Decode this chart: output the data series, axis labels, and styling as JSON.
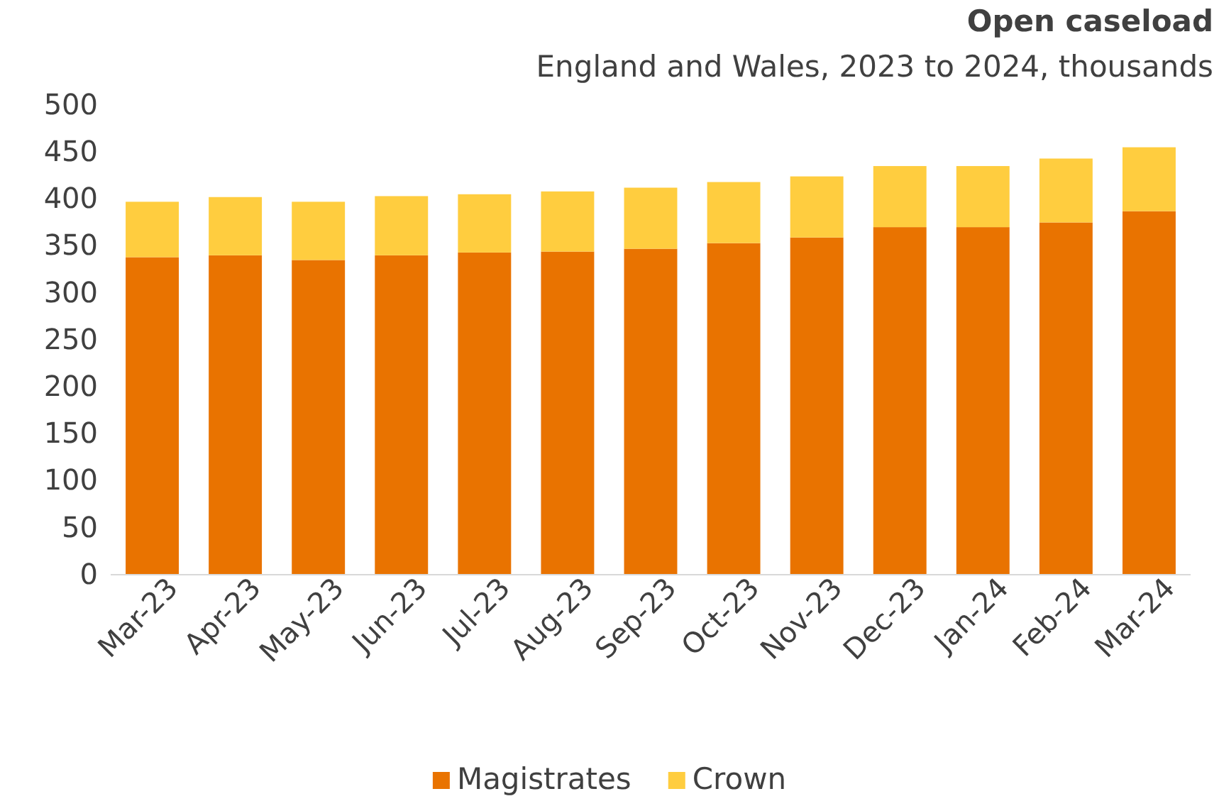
{
  "chart_data": {
    "type": "bar",
    "title": "Open caseload",
    "subtitle": "England and Wales, 2023 to 2024, thousands",
    "categories": [
      "Mar-23",
      "Apr-23",
      "May-23",
      "Jun-23",
      "Jul-23",
      "Aug-23",
      "Sep-23",
      "Oct-23",
      "Nov-23",
      "Dec-23",
      "Jan-24",
      "Feb-24",
      "Mar-24"
    ],
    "stacked": true,
    "series": [
      {
        "name": "Magistrates",
        "color": "#e97300",
        "values": [
          338,
          340,
          335,
          340,
          343,
          344,
          347,
          353,
          359,
          370,
          370,
          375,
          387
        ]
      },
      {
        "name": "Crown",
        "color": "#ffcd3f",
        "values": [
          59,
          62,
          62,
          63,
          62,
          64,
          65,
          65,
          65,
          65,
          65,
          68,
          68
        ]
      }
    ],
    "ylim": [
      0,
      500
    ],
    "yticks": [
      0,
      50,
      100,
      150,
      200,
      250,
      300,
      350,
      400,
      450,
      500
    ],
    "grid": false,
    "legend": "bottom"
  }
}
